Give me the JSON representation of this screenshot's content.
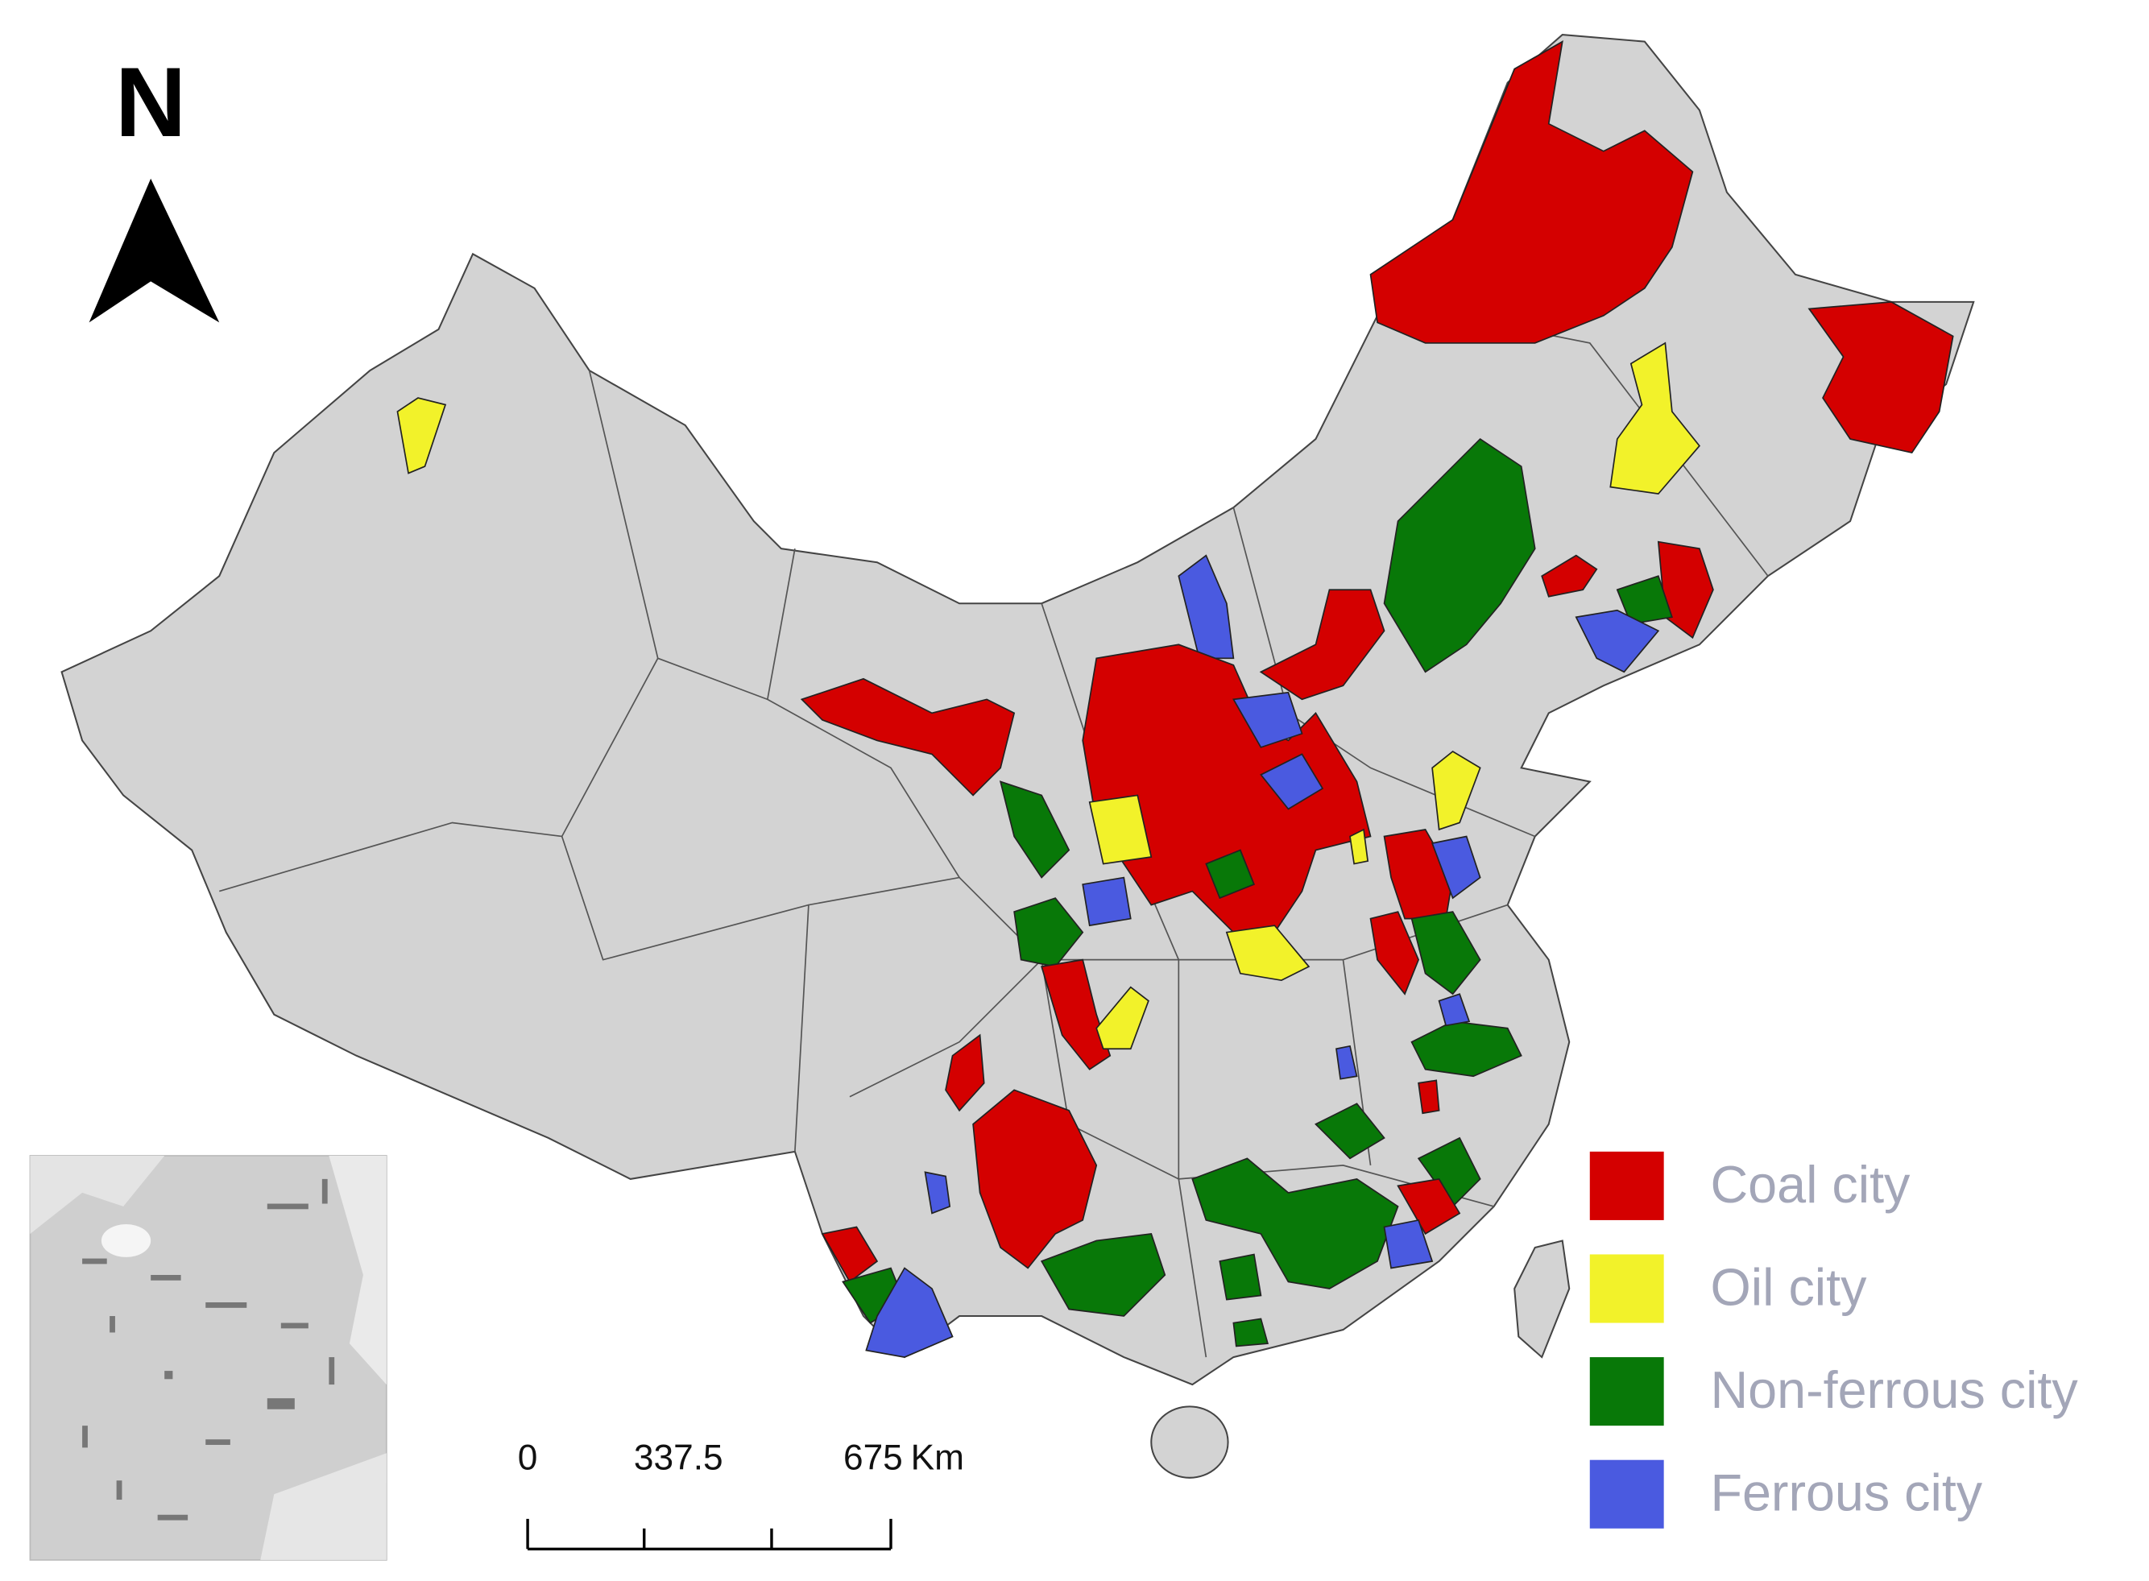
{
  "north_label": "N",
  "scale_bar": {
    "labels": [
      "0",
      "337.5",
      "675"
    ],
    "unit": "Km"
  },
  "legend": [
    {
      "label": "Coal city",
      "color": "#d40000"
    },
    {
      "label": "Oil city",
      "color": "#f2f22a"
    },
    {
      "label": "Non-ferrous city",
      "color": "#087808"
    },
    {
      "label": "Ferrous city",
      "color": "#4a5ae0"
    }
  ]
}
